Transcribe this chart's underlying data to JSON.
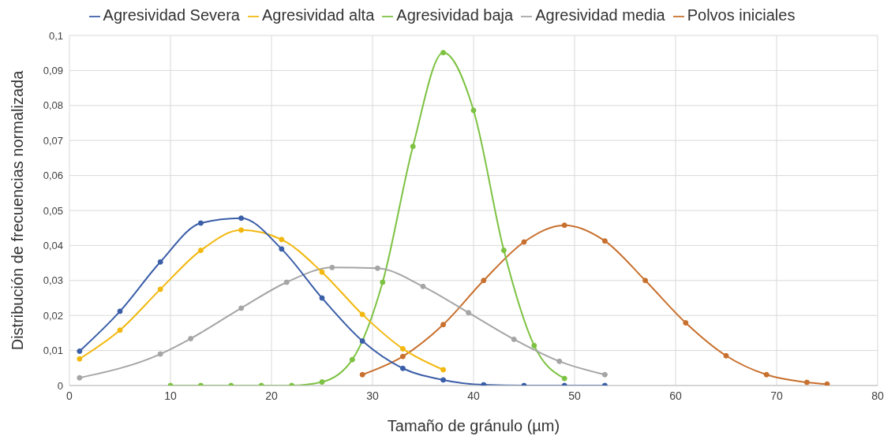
{
  "chart_data": {
    "type": "line",
    "xlabel": "Tamaño de gránulo (µm)",
    "ylabel": "Distribución de frecuencias normalizada",
    "xlim": [
      0,
      80
    ],
    "xticks": [
      0,
      10,
      20,
      30,
      40,
      50,
      60,
      70,
      80
    ],
    "ylim": [
      0,
      0.1
    ],
    "yticks": [
      0,
      {
        "value": 0.01,
        "label": "0,01"
      },
      {
        "value": 0.02,
        "label": "0,02"
      },
      {
        "value": 0.03,
        "label": "0,03"
      },
      {
        "value": 0.04,
        "label": "0,04"
      },
      {
        "value": 0.05,
        "label": "0,05"
      },
      {
        "value": 0.06,
        "label": "0,06"
      },
      {
        "value": 0.07,
        "label": "0,07"
      },
      {
        "value": 0.08,
        "label": "0,08"
      },
      {
        "value": 0.09,
        "label": "0,09"
      },
      {
        "value": 0.1,
        "label": "0,1"
      }
    ],
    "grid": true,
    "legend": "top",
    "marker": "circle",
    "line_style": "solid",
    "series": [
      {
        "name": "Polvos iniciales",
        "color": "#c8702e",
        "x": [
          29,
          33,
          37,
          41,
          45,
          49,
          53,
          57,
          61,
          65,
          69,
          73,
          75
        ],
        "values": [
          0.0031,
          0.0083,
          0.0174,
          0.03,
          0.041,
          0.0458,
          0.0413,
          0.03,
          0.0179,
          0.0085,
          0.0031,
          0.0009,
          0.0004
        ]
      },
      {
        "name": "Agresividad baja",
        "color": "#7dc242",
        "x": [
          10,
          13,
          16,
          19,
          22,
          25,
          28,
          31,
          34,
          37,
          40,
          43,
          46,
          49
        ],
        "values": [
          0,
          0,
          0,
          0,
          0,
          0.001,
          0.0074,
          0.0295,
          0.0683,
          0.0951,
          0.0786,
          0.0386,
          0.0114,
          0.002
        ]
      },
      {
        "name": "Agresividad media",
        "color": "#a5a5a5",
        "x": [
          1,
          9,
          12,
          17,
          21.5,
          26,
          30.5,
          35,
          39.5,
          44,
          48.5,
          53
        ],
        "values": [
          0.0022,
          0.009,
          0.0134,
          0.0221,
          0.0295,
          0.0337,
          0.0335,
          0.0283,
          0.0208,
          0.0132,
          0.0069,
          0.0031
        ]
      },
      {
        "name": "Agresividad alta",
        "color": "#f2b80f",
        "x": [
          1,
          5,
          9,
          13,
          17,
          21,
          25,
          29,
          33,
          37
        ],
        "values": [
          0.0076,
          0.0158,
          0.0275,
          0.0386,
          0.0444,
          0.0417,
          0.0324,
          0.0203,
          0.0105,
          0.0045
        ]
      },
      {
        "name": "Agresividad Severa",
        "color": "#3a5ea8",
        "x": [
          1,
          5,
          9,
          13,
          17,
          21,
          25,
          29,
          33,
          37,
          41,
          45,
          49,
          53
        ],
        "values": [
          0.0098,
          0.0212,
          0.0353,
          0.0464,
          0.0478,
          0.039,
          0.025,
          0.0127,
          0.0049,
          0.0016,
          0.0002,
          0,
          0,
          0
        ]
      }
    ]
  }
}
